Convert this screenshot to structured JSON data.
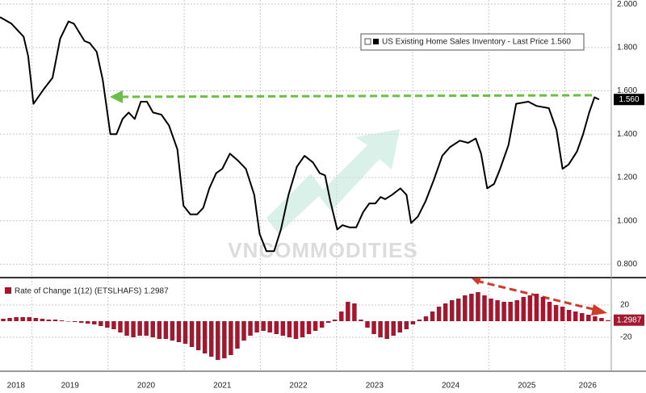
{
  "chart_data": [
    {
      "type": "line",
      "series": [
        {
          "name": "US Existing Home Sales Inventory - Last Price 1.560",
          "color": "#000000",
          "values": [
            1.94,
            1.91,
            1.85,
            1.76,
            1.54,
            1.61,
            1.66,
            1.84,
            1.92,
            1.91,
            1.83,
            1.82,
            1.78,
            1.65,
            1.4,
            1.4,
            1.47,
            1.5,
            1.47,
            1.55,
            1.55,
            1.5,
            1.49,
            1.44,
            1.33,
            1.07,
            1.03,
            1.03,
            1.06,
            1.15,
            1.22,
            1.24,
            1.31,
            1.28,
            1.24,
            1.12,
            0.94,
            0.86,
            0.86,
            0.96,
            1.12,
            1.25,
            1.3,
            1.27,
            1.22,
            1.21,
            1.09,
            0.96,
            0.98,
            0.97,
            0.97,
            1.04,
            1.08,
            1.08,
            1.11,
            1.1,
            1.12,
            1.15,
            1.12,
            0.99,
            1.02,
            1.09,
            1.19,
            1.3,
            1.34,
            1.37,
            1.36,
            1.38,
            1.31,
            1.15,
            1.17,
            1.24,
            1.35,
            1.54,
            1.55,
            1.53,
            1.52,
            1.42,
            1.24,
            1.26,
            1.32,
            1.4,
            1.5,
            1.57,
            1.56
          ]
        }
      ],
      "x": [
        2018.58,
        2018.73,
        2018.89,
        2018.95,
        2019.02,
        2019.16,
        2019.27,
        2019.37,
        2019.48,
        2019.55,
        2019.69,
        2019.76,
        2019.85,
        2019.93,
        2020.03,
        2020.11,
        2020.19,
        2020.27,
        2020.35,
        2020.43,
        2020.51,
        2020.59,
        2020.7,
        2020.8,
        2020.91,
        2020.99,
        2021.08,
        2021.17,
        2021.25,
        2021.33,
        2021.42,
        2021.5,
        2021.6,
        2021.7,
        2021.81,
        2021.92,
        2021.99,
        2022.08,
        2022.18,
        2022.27,
        2022.37,
        2022.48,
        2022.58,
        2022.69,
        2022.78,
        2022.85,
        2022.92,
        2023.01,
        2023.08,
        2023.17,
        2023.26,
        2023.35,
        2023.43,
        2023.51,
        2023.58,
        2023.64,
        2023.73,
        2023.84,
        2023.92,
        2023.98,
        2024.07,
        2024.17,
        2024.28,
        2024.39,
        2024.49,
        2024.62,
        2024.73,
        2024.83,
        2024.9,
        2024.98,
        2025.07,
        2025.15,
        2025.26,
        2025.36,
        2025.52,
        2025.63,
        2025.79,
        2025.89,
        2025.97,
        2026.05,
        2026.16,
        2026.24,
        2026.32,
        2026.39,
        2026.45
      ],
      "xlim": [
        2018.58,
        2026.61
      ],
      "xticks": [
        {
          "value": 2018.79,
          "label": "2018"
        },
        {
          "value": 2019.5,
          "label": "2019"
        },
        {
          "value": 2020.5,
          "label": "2020"
        },
        {
          "value": 2021.5,
          "label": "2021"
        },
        {
          "value": 2022.5,
          "label": "2022"
        },
        {
          "value": 2023.5,
          "label": "2023"
        },
        {
          "value": 2024.5,
          "label": "2024"
        },
        {
          "value": 2025.5,
          "label": "2025"
        },
        {
          "value": 2026.3,
          "label": "2026"
        }
      ],
      "xgrid": [
        2019,
        2020,
        2021,
        2022,
        2023,
        2024,
        2025,
        2026
      ],
      "ylim": [
        0.753,
        2.019
      ],
      "yticks": [
        {
          "value": 0.8,
          "label": "0.800"
        },
        {
          "value": 1.0,
          "label": "1.000"
        },
        {
          "value": 1.2,
          "label": "1.200"
        },
        {
          "value": 1.4,
          "label": "1.400"
        },
        {
          "value": 1.6,
          "label": "1.600"
        },
        {
          "value": 1.8,
          "label": "1.800"
        },
        {
          "value": 2.0,
          "label": "2.000"
        }
      ],
      "last_label": "1.560",
      "watermark": "VNCOMMODITIES"
    },
    {
      "type": "bar",
      "series": [
        {
          "name": "Rate of Change 1(12) (ETSLHAFS) 1.2987",
          "color": "#a3172f",
          "values": [
            3,
            4,
            5,
            5,
            5,
            4,
            3,
            2,
            2,
            1,
            0,
            -1,
            -2,
            -3,
            -4,
            -6,
            -8,
            -10,
            -14,
            -18,
            -20,
            -18,
            -18,
            -20,
            -22,
            -22,
            -24,
            -26,
            -28,
            -32,
            -36,
            -40,
            -44,
            -48,
            -46,
            -42,
            -34,
            -24,
            -18,
            -14,
            -12,
            -14,
            -16,
            -18,
            -20,
            -22,
            -20,
            -16,
            -12,
            -8,
            -2,
            2,
            12,
            24,
            22,
            2,
            -8,
            -16,
            -20,
            -22,
            -18,
            -14,
            -10,
            -4,
            2,
            6,
            12,
            18,
            22,
            26,
            28,
            32,
            34,
            36,
            32,
            28,
            26,
            24,
            24,
            26,
            30,
            32,
            34,
            30,
            24,
            20,
            18,
            14,
            12,
            10,
            8,
            6,
            4,
            1.2987
          ]
        }
      ],
      "ylim": [
        -60,
        50
      ],
      "yticks": [
        20,
        -20
      ],
      "last_label": "1.2987"
    }
  ]
}
